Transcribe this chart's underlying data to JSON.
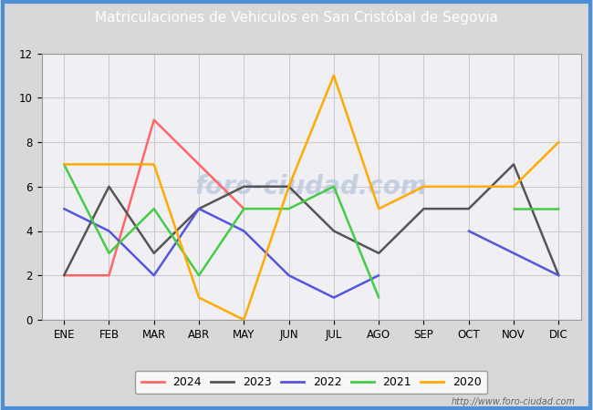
{
  "title": "Matriculaciones de Vehiculos en San Cristóbal de Segovia",
  "title_bg_color": "#4d8fd6",
  "title_text_color": "#ffffff",
  "x_labels": [
    "ENE",
    "FEB",
    "MAR",
    "ABR",
    "MAY",
    "JUN",
    "JUL",
    "AGO",
    "SEP",
    "OCT",
    "NOV",
    "DIC"
  ],
  "ylim": [
    0,
    12
  ],
  "yticks": [
    0,
    2,
    4,
    6,
    8,
    10,
    12
  ],
  "series": {
    "2024": {
      "color": "#ff6666",
      "data": [
        2,
        2,
        9,
        7,
        5,
        null,
        null,
        null,
        null,
        null,
        null,
        null
      ]
    },
    "2023": {
      "color": "#555555",
      "data": [
        2,
        6,
        3,
        5,
        6,
        6,
        4,
        3,
        5,
        5,
        7,
        2
      ]
    },
    "2022": {
      "color": "#5555dd",
      "data": [
        5,
        4,
        2,
        5,
        4,
        2,
        1,
        2,
        null,
        4,
        3,
        2
      ]
    },
    "2021": {
      "color": "#44cc44",
      "data": [
        7,
        3,
        5,
        2,
        5,
        5,
        6,
        1,
        null,
        null,
        5,
        5
      ]
    },
    "2020": {
      "color": "#ffaa00",
      "data": [
        7,
        7,
        7,
        1,
        0,
        6,
        11,
        5,
        6,
        6,
        6,
        8
      ]
    }
  },
  "bg_color": "#d8d8d8",
  "plot_bg_color": "#e8e8f0",
  "grid_color": "#cccccc",
  "border_color": "#4d8fd6",
  "watermark_text": "foro-ciudad.com",
  "watermark_color": "#c0cce0",
  "url_text": "http://www.foro-ciudad.com",
  "legend_order": [
    "2024",
    "2023",
    "2022",
    "2021",
    "2020"
  ]
}
